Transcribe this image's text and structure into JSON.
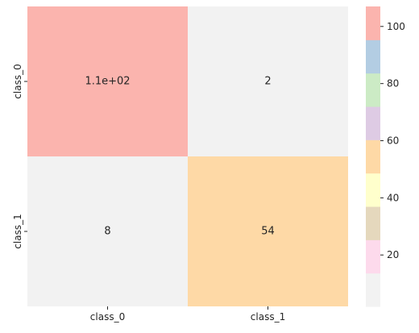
{
  "chart_data": {
    "type": "heatmap",
    "title": "",
    "xlabel": "",
    "ylabel": "",
    "x_categories": [
      "class_0",
      "class_1"
    ],
    "y_categories": [
      "class_0",
      "class_1"
    ],
    "values": [
      [
        107,
        2
      ],
      [
        8,
        54
      ]
    ],
    "annotations": [
      [
        "1.1e+02",
        "2"
      ],
      [
        "8",
        "54"
      ]
    ],
    "colormap": "Pastel1",
    "colorbar": {
      "range": [
        2,
        107
      ],
      "ticks": [
        20,
        40,
        60,
        80,
        100
      ],
      "tick_labels": [
        "20",
        "40",
        "60",
        "80",
        "100"
      ],
      "colors": [
        "#f2f2f2",
        "#fddaec",
        "#e5d8bd",
        "#ffffcc",
        "#fed9a6",
        "#decbe4",
        "#ccebc5",
        "#b3cde3",
        "#fbb4ae"
      ]
    }
  }
}
